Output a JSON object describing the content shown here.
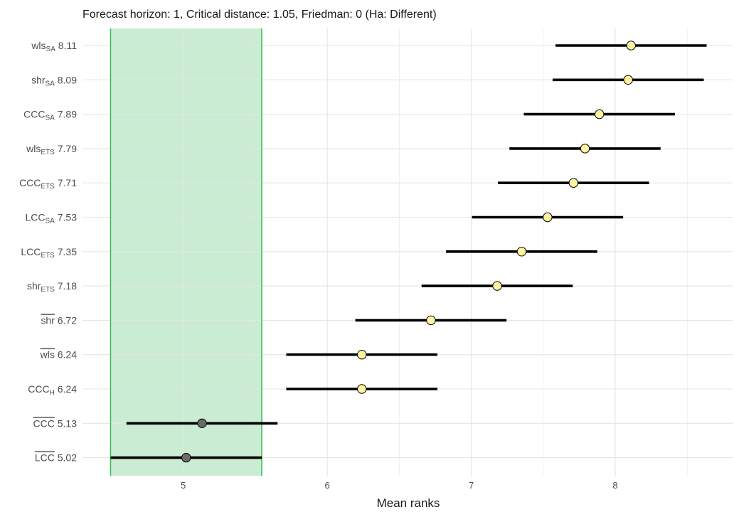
{
  "chart_data": {
    "type": "scatter",
    "title": "Forecast horizon: 1, Critical distance: 1.05, Friedman: 0 (Ha: Different)",
    "xlabel": "Mean ranks",
    "ylabel": "",
    "xlim": [
      4.3,
      8.82
    ],
    "xticks": [
      5,
      6,
      7,
      8
    ],
    "grid": true,
    "critical_distance": 1.05,
    "highlight_band": {
      "from": 4.495,
      "to": 5.545,
      "fill": "#c9ecd3",
      "edge": "#2cbf4c"
    },
    "point_colors": {
      "significantly_different": "#fff3a0",
      "not_different": "#6b6b6b"
    },
    "items": [
      {
        "base": "wls",
        "sub": "SA",
        "overline": false,
        "value_text": "8.11",
        "value": 8.11,
        "lo": 7.585,
        "hi": 8.635,
        "group": "significantly_different"
      },
      {
        "base": "shr",
        "sub": "SA",
        "overline": false,
        "value_text": "8.09",
        "value": 8.09,
        "lo": 7.565,
        "hi": 8.615,
        "group": "significantly_different"
      },
      {
        "base": "CCC",
        "sub": "SA",
        "overline": false,
        "value_text": "7.89",
        "value": 7.89,
        "lo": 7.365,
        "hi": 8.415,
        "group": "significantly_different"
      },
      {
        "base": "wls",
        "sub": "ETS",
        "overline": false,
        "value_text": "7.79",
        "value": 7.79,
        "lo": 7.265,
        "hi": 8.315,
        "group": "significantly_different"
      },
      {
        "base": "CCC",
        "sub": "ETS",
        "overline": false,
        "value_text": "7.71",
        "value": 7.71,
        "lo": 7.185,
        "hi": 8.235,
        "group": "significantly_different"
      },
      {
        "base": "LCC",
        "sub": "SA",
        "overline": false,
        "value_text": "7.53",
        "value": 7.53,
        "lo": 7.005,
        "hi": 8.055,
        "group": "significantly_different"
      },
      {
        "base": "LCC",
        "sub": "ETS",
        "overline": false,
        "value_text": "7.35",
        "value": 7.35,
        "lo": 6.825,
        "hi": 7.875,
        "group": "significantly_different"
      },
      {
        "base": "shr",
        "sub": "ETS",
        "overline": false,
        "value_text": "7.18",
        "value": 7.18,
        "lo": 6.655,
        "hi": 7.705,
        "group": "significantly_different"
      },
      {
        "base": "shr",
        "sub": "",
        "overline": true,
        "value_text": "6.72",
        "value": 6.72,
        "lo": 6.195,
        "hi": 7.245,
        "group": "significantly_different"
      },
      {
        "base": "wls",
        "sub": "",
        "overline": true,
        "value_text": "6.24",
        "value": 6.24,
        "lo": 5.715,
        "hi": 6.765,
        "group": "significantly_different"
      },
      {
        "base": "CCC",
        "sub": "H",
        "overline": false,
        "value_text": "6.24",
        "value": 6.24,
        "lo": 5.715,
        "hi": 6.765,
        "group": "significantly_different"
      },
      {
        "base": "CCC",
        "sub": "",
        "overline": true,
        "value_text": "5.13",
        "value": 5.13,
        "lo": 4.605,
        "hi": 5.655,
        "group": "not_different"
      },
      {
        "base": "LCC",
        "sub": "",
        "overline": true,
        "value_text": "5.02",
        "value": 5.02,
        "lo": 4.495,
        "hi": 5.545,
        "group": "not_different"
      }
    ]
  }
}
